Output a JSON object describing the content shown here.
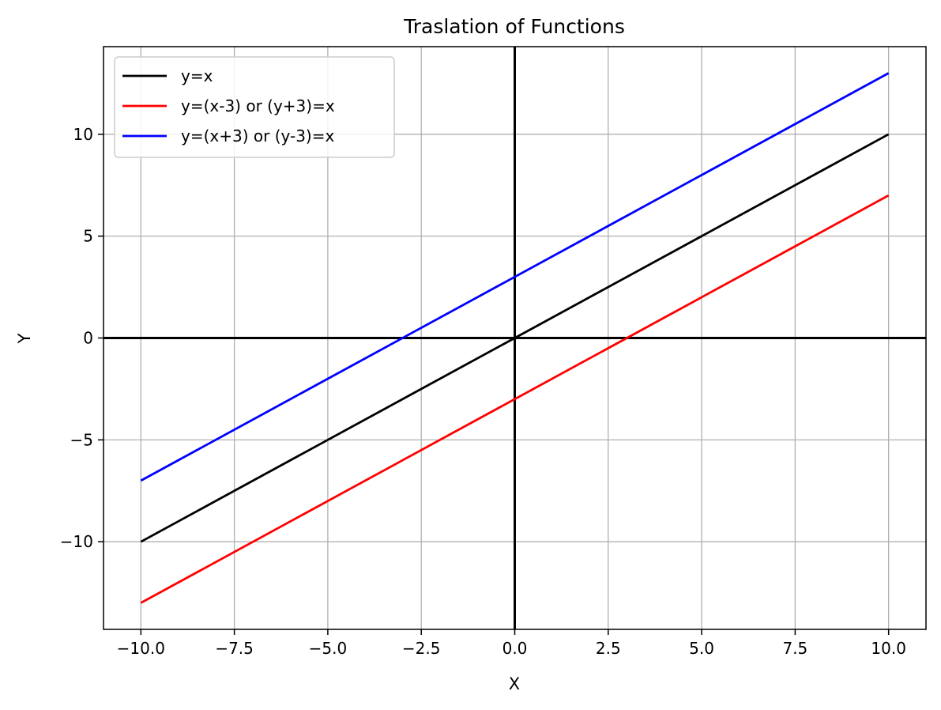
{
  "chart_data": {
    "type": "line",
    "title": "Traslation of Functions",
    "xlabel": "X",
    "ylabel": "Y",
    "xlim": [
      -11,
      11
    ],
    "ylim": [
      -14.3,
      14.3
    ],
    "grid": true,
    "legend_position": "top-left",
    "x_ticks": [
      -10.0,
      -7.5,
      -5.0,
      -2.5,
      0.0,
      2.5,
      5.0,
      7.5,
      10.0
    ],
    "x_tick_labels": [
      "−10.0",
      "−7.5",
      "−5.0",
      "−2.5",
      "0.0",
      "2.5",
      "5.0",
      "7.5",
      "10.0"
    ],
    "y_ticks": [
      -10,
      -5,
      0,
      5,
      10
    ],
    "y_tick_labels": [
      "−10",
      "−5",
      "0",
      "5",
      "10"
    ],
    "reference_lines": {
      "x": 0,
      "y": 0,
      "color": "#000000"
    },
    "series": [
      {
        "name": "y=x",
        "color": "#000000",
        "x": [
          -10,
          10
        ],
        "y": [
          -10,
          10
        ]
      },
      {
        "name": "y=(x-3) or (y+3)=x",
        "color": "#ff0000",
        "x": [
          -10,
          10
        ],
        "y": [
          -13,
          7
        ]
      },
      {
        "name": "y=(x+3) or (y-3)=x",
        "color": "#0000ff",
        "x": [
          -10,
          10
        ],
        "y": [
          -7,
          13
        ]
      }
    ]
  }
}
